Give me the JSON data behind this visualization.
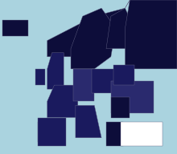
{
  "background_color": "#aad3df",
  "ocean_color": "#aad3df",
  "country_colors": {
    "ISL": "#0d0d3a",
    "IRL": "#1a1a5e",
    "GBR": "#1a1a5e",
    "PRT": "#1a1a5e",
    "ESP": "#1a1a5e",
    "FRA": "#1a1a5e",
    "BEL": "#1a1a5e",
    "NLD": "#1a1a5e",
    "DEU": "#2a2a6e",
    "CHE": "#1a1a5e",
    "AUT": "#1a1a5e",
    "ITA": "#1a1a5e",
    "NOR": "#0d0d3a",
    "SWE": "#0d0d3a",
    "DNK": "#0d0d3a",
    "FIN": "#0d0d3a",
    "EST": "#2a2a7e",
    "LVA": "#2a2a6e",
    "LTU": "#1a1a5e",
    "POL": "#1a1a5e",
    "CZE": "#2a2a7e",
    "SVK": "#1a1a5e",
    "HUN": "#1a1a5e",
    "SVN": "#1a1a5e",
    "HRV": "#1a1a5e",
    "BIH": "#2a2a6e",
    "SRB": "#1a1a5e",
    "MNE": "#1a1a5e",
    "MKD": "#0d0d3a",
    "ALB": "#7070b0",
    "GRC": "#0d0d3a",
    "BGR": "#1a1a5e",
    "ROU": "#0d0d3a",
    "MDA": "#2a2a6e",
    "UKR": "#2a2a6e",
    "BLR": "#1a1a5e",
    "RUS": "#0d0d3a",
    "LUX": "#1a1a5e",
    "MLT": "#0d0d3a",
    "CYP": "#0d0d3a",
    "TUR": "#ffffff",
    "SYR": "#c8c8e8",
    "IRQ": "#c8c8e8",
    "SAU": "#ffffff",
    "JOR": "#c8c8e8",
    "ISR": "#c8c8e8",
    "LBN": "#9090c8",
    "KAZ": "#c8c8e8",
    "AZE": "#c8c8e8",
    "GEO": "#0d0d3a",
    "ARM": "#0d0d3a",
    "LIE": "#1a1a5e",
    "MCO": "#1a1a5e",
    "AND": "#1a1a5e",
    "SMR": "#1a1a5e",
    "VAT": "#0d0d3a",
    "XKX": "#2a2a6e",
    "default": "#c8c8e8"
  },
  "figsize": [
    2.2,
    1.92
  ],
  "dpi": 100,
  "extent": [
    -25,
    50,
    34,
    72
  ]
}
